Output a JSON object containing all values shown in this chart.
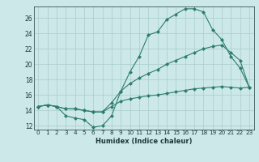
{
  "xlabel": "Humidex (Indice chaleur)",
  "x": [
    0,
    1,
    2,
    3,
    4,
    5,
    6,
    7,
    8,
    9,
    10,
    11,
    12,
    13,
    14,
    15,
    16,
    17,
    18,
    19,
    20,
    21,
    22,
    23
  ],
  "line1": [
    14.5,
    14.7,
    14.5,
    13.3,
    13.0,
    12.8,
    11.8,
    12.0,
    13.3,
    16.5,
    19.0,
    21.0,
    23.8,
    24.2,
    25.8,
    26.5,
    27.2,
    27.2,
    26.8,
    24.5,
    23.2,
    21.0,
    19.5,
    17.0
  ],
  "line2": [
    14.5,
    14.7,
    14.5,
    14.2,
    14.2,
    14.0,
    13.8,
    13.8,
    15.0,
    16.5,
    17.5,
    18.2,
    18.8,
    19.3,
    20.0,
    20.5,
    21.0,
    21.5,
    22.0,
    22.3,
    22.5,
    21.5,
    20.5,
    17.0
  ],
  "line3": [
    14.5,
    14.7,
    14.5,
    14.2,
    14.2,
    14.0,
    13.8,
    13.8,
    14.5,
    15.2,
    15.5,
    15.7,
    15.9,
    16.0,
    16.2,
    16.4,
    16.6,
    16.8,
    16.9,
    17.0,
    17.1,
    17.0,
    16.9,
    17.0
  ],
  "line_color": "#2d7d6e",
  "bg_color": "#cce8e8",
  "grid_color": "#aacccc",
  "tick_color": "#1a3a3a",
  "ylim": [
    11.5,
    27.5
  ],
  "xlim": [
    -0.5,
    23.5
  ],
  "yticks": [
    12,
    14,
    16,
    18,
    20,
    22,
    24,
    26
  ],
  "xticks": [
    0,
    1,
    2,
    3,
    4,
    5,
    6,
    7,
    8,
    9,
    10,
    11,
    12,
    13,
    14,
    15,
    16,
    17,
    18,
    19,
    20,
    21,
    22,
    23
  ],
  "xlabel_fontsize": 6.0,
  "tick_fontsize": 5.2
}
